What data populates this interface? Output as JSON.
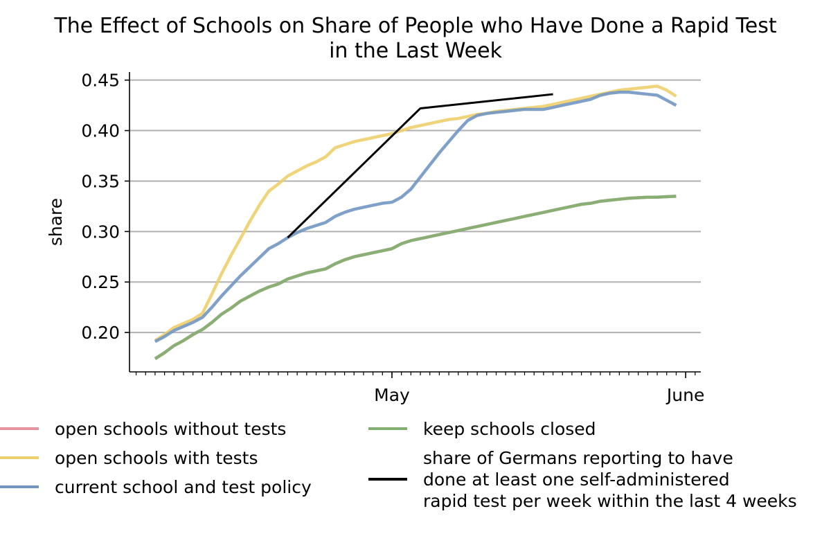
{
  "chart_data": {
    "type": "line",
    "title": "The Effect of Schools on Share of People who Have Done a Rapid Test\nin the Last Week",
    "ylabel": "share",
    "x": [
      96,
      97,
      98,
      99,
      100,
      101,
      102,
      103,
      104,
      105,
      106,
      107,
      108,
      109,
      110,
      111,
      112,
      113,
      114,
      115,
      116,
      117,
      118,
      119,
      120,
      121,
      122,
      123,
      124,
      125,
      126,
      127,
      128,
      129,
      130,
      131,
      132,
      133,
      134,
      135,
      136,
      137,
      138,
      139,
      140,
      141,
      142,
      143,
      144,
      145,
      146,
      147,
      148,
      149,
      150,
      151
    ],
    "xlim": [
      93.3,
      153.6
    ],
    "xticks": [
      {
        "value": 121,
        "label": "May"
      },
      {
        "value": 152,
        "label": "June"
      }
    ],
    "ylim": [
      0.161,
      0.458
    ],
    "yticks": [
      {
        "value": 0.2,
        "label": "0.20"
      },
      0.25,
      {
        "value": 0.3,
        "label": "0.30"
      },
      0.35,
      {
        "value": 0.4,
        "label": "0.40"
      },
      0.45
    ],
    "grid": "y",
    "legend": "below",
    "series": [
      {
        "name": "open schools without tests",
        "color": "#e6939c",
        "values": [
          0.174,
          0.18,
          0.187,
          0.192,
          0.198,
          0.203,
          0.21,
          0.218,
          0.224,
          0.231,
          0.236,
          0.241,
          0.245,
          0.248,
          0.253,
          0.256,
          0.259,
          0.261,
          0.263,
          0.268,
          0.272,
          0.275,
          0.277,
          0.279,
          0.281,
          0.283,
          0.288,
          0.291,
          0.293,
          0.295,
          0.297,
          0.299,
          0.301,
          0.303,
          0.305,
          0.307,
          0.309,
          0.311,
          0.313,
          0.315,
          0.317,
          0.319,
          0.321,
          0.323,
          0.325,
          0.327,
          0.328,
          0.33,
          0.331,
          0.332,
          0.333,
          0.3335,
          0.334,
          0.334,
          0.3345,
          0.335
        ]
      },
      {
        "name": "open schools with tests",
        "color": "#edcf6b",
        "values": [
          0.192,
          0.198,
          0.205,
          0.209,
          0.213,
          0.219,
          0.238,
          0.258,
          0.276,
          0.293,
          0.31,
          0.326,
          0.34,
          0.347,
          0.355,
          0.36,
          0.365,
          0.369,
          0.374,
          0.383,
          0.386,
          0.389,
          0.391,
          0.393,
          0.395,
          0.397,
          0.4,
          0.403,
          0.405,
          0.407,
          0.409,
          0.411,
          0.412,
          0.414,
          0.416,
          0.417,
          0.419,
          0.42,
          0.421,
          0.422,
          0.423,
          0.424,
          0.426,
          0.428,
          0.43,
          0.432,
          0.434,
          0.436,
          0.438,
          0.44,
          0.441,
          0.442,
          0.443,
          0.444,
          0.44,
          0.434
        ]
      },
      {
        "name": "current school and test policy",
        "color": "#7196c2",
        "values": [
          0.191,
          0.196,
          0.202,
          0.206,
          0.21,
          0.215,
          0.225,
          0.236,
          0.246,
          0.256,
          0.265,
          0.274,
          0.283,
          0.288,
          0.294,
          0.299,
          0.303,
          0.306,
          0.309,
          0.315,
          0.319,
          0.322,
          0.324,
          0.326,
          0.328,
          0.329,
          0.334,
          0.342,
          0.354,
          0.366,
          0.378,
          0.389,
          0.4,
          0.41,
          0.415,
          0.417,
          0.418,
          0.419,
          0.42,
          0.421,
          0.421,
          0.421,
          0.423,
          0.425,
          0.427,
          0.429,
          0.431,
          0.435,
          0.437,
          0.438,
          0.438,
          0.437,
          0.436,
          0.435,
          0.43,
          0.425
        ]
      },
      {
        "name": "keep schools closed",
        "color": "#7fb06f",
        "values": [
          0.174,
          0.18,
          0.187,
          0.192,
          0.198,
          0.203,
          0.21,
          0.218,
          0.224,
          0.231,
          0.236,
          0.241,
          0.245,
          0.248,
          0.253,
          0.256,
          0.259,
          0.261,
          0.263,
          0.268,
          0.272,
          0.275,
          0.277,
          0.279,
          0.281,
          0.283,
          0.288,
          0.291,
          0.293,
          0.295,
          0.297,
          0.299,
          0.301,
          0.303,
          0.305,
          0.307,
          0.309,
          0.311,
          0.313,
          0.315,
          0.317,
          0.319,
          0.321,
          0.323,
          0.325,
          0.327,
          0.328,
          0.33,
          0.331,
          0.332,
          0.333,
          0.3335,
          0.334,
          0.334,
          0.3345,
          0.335
        ]
      },
      {
        "name": "share of Germans reporting to have\ndone at least one self-administered\nrapid test per week within the last 4 weeks",
        "color": "#000000",
        "x": [
          110,
          124,
          138
        ],
        "values": [
          0.294,
          0.422,
          0.436
        ]
      }
    ]
  }
}
